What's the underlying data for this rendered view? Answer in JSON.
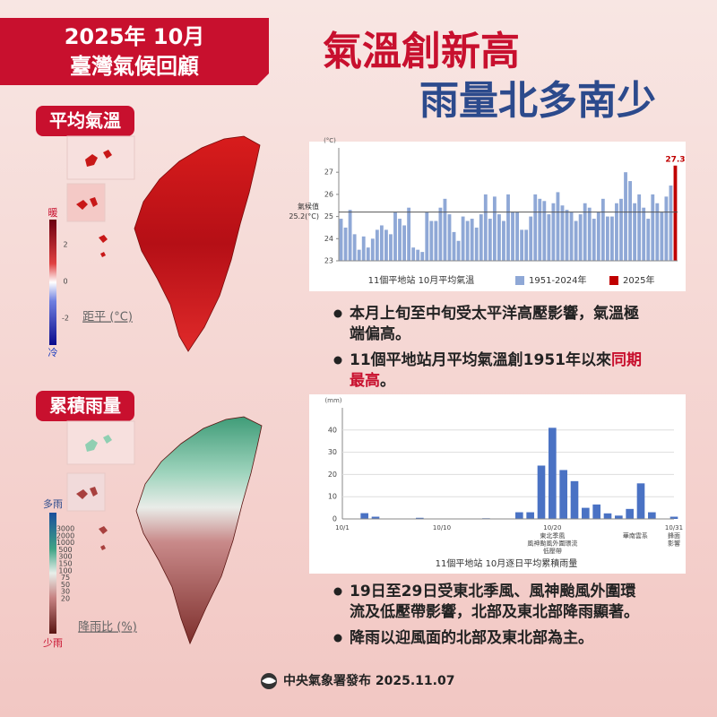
{
  "header": {
    "date": "2025年 10月",
    "title": "臺灣氣候回顧"
  },
  "headline": [
    "氣溫創新高",
    "雨量北多南少"
  ],
  "maps": {
    "temperature": {
      "label": "平均氣溫",
      "top": "暖",
      "bottom": "冷",
      "ticks": [
        2,
        0,
        -2
      ],
      "unit_label": "距平 (°C)"
    },
    "rainfall": {
      "label": "累積雨量",
      "top": "多雨",
      "bottom": "少雨",
      "ticks": [
        3000,
        2000,
        1000,
        500,
        300,
        150,
        100,
        75,
        50,
        30,
        20
      ],
      "unit_label": "降雨比 (%)"
    }
  },
  "chart_data": [
    {
      "type": "bar",
      "y_unit": "(°C)",
      "x_label": "11個平地站 10月平均氣溫",
      "ylim": [
        23,
        28.1
      ],
      "yticks": [
        23,
        24,
        25,
        26,
        27
      ],
      "reference_line": {
        "value": 25.2,
        "label": [
          "氣候值",
          "25.2(°C)"
        ]
      },
      "series": [
        {
          "name": "1951-2024年",
          "color": "#8fa8d6",
          "values": [
            24.9,
            24.5,
            25.3,
            24.2,
            23.5,
            24.1,
            23.6,
            24.0,
            24.4,
            24.6,
            24.4,
            24.2,
            25.2,
            24.9,
            24.6,
            25.4,
            23.6,
            23.5,
            23.4,
            25.2,
            24.8,
            24.8,
            25.4,
            25.8,
            25.1,
            24.3,
            23.9,
            25.0,
            24.8,
            24.9,
            24.5,
            25.1,
            26.0,
            24.9,
            25.9,
            25.1,
            24.8,
            26.0,
            25.2,
            25.2,
            24.4,
            24.4,
            25.0,
            26.0,
            25.8,
            25.7,
            25.1,
            25.6,
            26.1,
            25.5,
            25.3,
            25.2,
            24.8,
            25.1,
            25.6,
            25.4,
            24.9,
            25.2,
            25.8,
            25.0,
            25.0,
            25.6,
            25.8,
            27.0,
            26.6,
            25.6,
            26.0,
            25.4,
            24.9,
            26.0,
            25.6,
            25.2,
            25.9,
            26.4,
            null
          ]
        },
        {
          "name": "2025年",
          "color": "#c00000",
          "values": [
            null,
            null,
            null,
            null,
            null,
            null,
            null,
            null,
            null,
            null,
            null,
            null,
            null,
            null,
            null,
            null,
            null,
            null,
            null,
            null,
            null,
            null,
            null,
            null,
            null,
            null,
            null,
            null,
            null,
            null,
            null,
            null,
            null,
            null,
            null,
            null,
            null,
            null,
            null,
            null,
            null,
            null,
            null,
            null,
            null,
            null,
            null,
            null,
            null,
            null,
            null,
            null,
            null,
            null,
            null,
            null,
            null,
            null,
            null,
            null,
            null,
            null,
            null,
            null,
            null,
            null,
            null,
            null,
            null,
            null,
            null,
            null,
            null,
            null,
            27.3
          ]
        }
      ]
    },
    {
      "type": "bar",
      "y_unit": "(mm)",
      "x_label": "11個平地站 10月逐日平均累積雨量",
      "ylim": [
        0,
        50
      ],
      "yticks": [
        0,
        10,
        20,
        30,
        40
      ],
      "grid": true,
      "color": "#4a72c4",
      "categories": [
        "10/1",
        null,
        null,
        null,
        null,
        null,
        null,
        null,
        null,
        "10/10",
        null,
        null,
        null,
        null,
        null,
        null,
        null,
        null,
        null,
        "10/20",
        null,
        null,
        null,
        null,
        null,
        null,
        null,
        null,
        null,
        null,
        "10/31"
      ],
      "values": [
        0,
        0,
        2.6,
        1,
        0,
        0,
        0,
        0.5,
        0,
        0,
        0,
        0,
        0,
        0.3,
        0,
        0,
        3,
        3,
        24,
        41,
        22,
        17,
        5,
        6.5,
        2.5,
        1.5,
        4.5,
        16,
        3,
        0,
        1
      ],
      "annotations": [
        [
          "東北季風",
          "風神颱風外圍環流",
          "低壓帶"
        ],
        [
          "華南雲系"
        ],
        [
          "鋒面",
          "影響"
        ]
      ]
    }
  ],
  "bullets": [
    [
      [
        "本月上旬至中旬受太平洋高壓影響，氣溫極"
      ],
      [
        "端偏高。"
      ]
    ],
    [
      [
        "11個平地站月平均氣溫創1951年以來",
        "同期"
      ],
      [
        "最高",
        "。"
      ]
    ],
    [
      [
        "19日至29日受東北季風、風神颱風外圍環"
      ],
      [
        "流及低壓帶影響，北部及東北部降雨顯著。"
      ]
    ],
    [
      [
        "降雨以迎風面的北部及東北部為主。"
      ]
    ]
  ],
  "footer": "中央氣象署發布 2025.11.07"
}
